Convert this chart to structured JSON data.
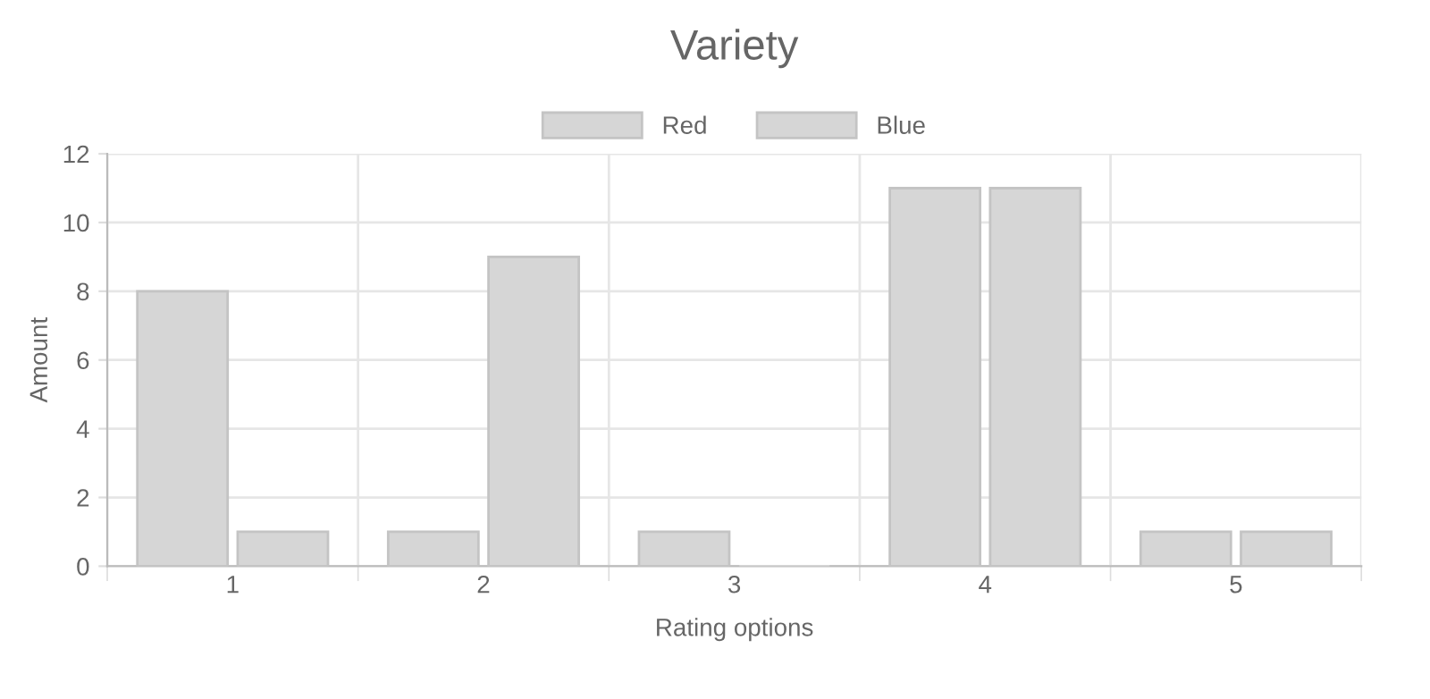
{
  "chart_data": {
    "type": "bar",
    "title": "Variety",
    "xlabel": "Rating options",
    "ylabel": "Amount",
    "categories": [
      "1",
      "2",
      "3",
      "4",
      "5"
    ],
    "series": [
      {
        "name": "Red",
        "color": "#d6d6d6",
        "values": [
          8,
          1,
          1,
          11,
          1
        ]
      },
      {
        "name": "Blue",
        "color": "#d6d6d6",
        "values": [
          1,
          9,
          0,
          11,
          1
        ]
      }
    ],
    "ylim": [
      0,
      12
    ],
    "yticks": [
      0,
      2,
      4,
      6,
      8,
      10,
      12
    ],
    "grid": true,
    "legend": "top"
  }
}
